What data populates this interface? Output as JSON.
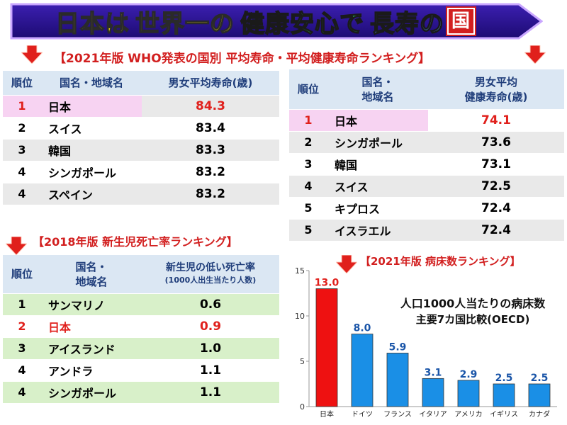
{
  "banner": {
    "part1": "日本は",
    "part2": "世界一の",
    "part3": "健康安心で",
    "part4": "長寿の",
    "part5": "国"
  },
  "life_section": {
    "heading": "【2021年版 WHO発表の国別 平均寿命・平均健康寿命ランキング】"
  },
  "life_table": {
    "headers": [
      "順位",
      "国名・地域名",
      "男女平均寿命(歳)"
    ],
    "rows": [
      {
        "rank": "1",
        "name": "日本",
        "value": "84.3"
      },
      {
        "rank": "2",
        "name": "スイス",
        "value": "83.4"
      },
      {
        "rank": "3",
        "name": "韓国",
        "value": "83.3"
      },
      {
        "rank": "4",
        "name": "シンガポール",
        "value": "83.2"
      },
      {
        "rank": "4",
        "name": "スペイン",
        "value": "83.2"
      }
    ]
  },
  "healthy_table": {
    "headers": [
      "順位",
      "国名・\n地域名",
      "男女平均\n健康寿命(歳)"
    ],
    "rows": [
      {
        "rank": "1",
        "name": "日本",
        "value": "74.1"
      },
      {
        "rank": "2",
        "name": "シンガポール",
        "value": "73.6"
      },
      {
        "rank": "3",
        "name": "韓国",
        "value": "73.1"
      },
      {
        "rank": "4",
        "name": "スイス",
        "value": "72.5"
      },
      {
        "rank": "5",
        "name": "キプロス",
        "value": "72.4"
      },
      {
        "rank": "5",
        "name": "イスラエル",
        "value": "72.4"
      }
    ]
  },
  "neonatal_section": {
    "heading": "【2018年版 新生児死亡率ランキング】"
  },
  "neonatal_table": {
    "headers": [
      "順位",
      "国名・\n地域名",
      "新生児の低い死亡率",
      "(1000人出生当たり人数)"
    ],
    "rows": [
      {
        "rank": "1",
        "name": "サンマリノ",
        "value": "0.6"
      },
      {
        "rank": "2",
        "name": "日本",
        "value": "0.9"
      },
      {
        "rank": "3",
        "name": "アイスランド",
        "value": "1.0"
      },
      {
        "rank": "4",
        "name": "アンドラ",
        "value": "1.1"
      },
      {
        "rank": "4",
        "name": "シンガポール",
        "value": "1.1"
      }
    ]
  },
  "beds_section": {
    "heading": "【2021年版 病床数ランキング】"
  },
  "chart_data": {
    "type": "bar",
    "title": "人口1000人当たりの病床数",
    "subtitle": "主要7カ国比較(OECD)",
    "categories": [
      "日本",
      "ドイツ",
      "フランス",
      "イタリア",
      "アメリカ",
      "イギリス",
      "カナダ"
    ],
    "values": [
      13.0,
      8.0,
      5.9,
      3.1,
      2.9,
      2.5,
      2.5
    ],
    "value_labels": [
      "13.0",
      "8.0",
      "5.9",
      "3.1",
      "2.9",
      "2.5",
      "2.5"
    ],
    "yticks": [
      "0",
      "5",
      "10",
      "15"
    ],
    "ylim": [
      0,
      15
    ],
    "xlabel": "",
    "ylabel": "",
    "grid": false,
    "colors": {
      "highlight": "#ee1111",
      "default": "#1a8fe6",
      "highlight_label": "#e0201c",
      "default_label": "#1a55a8"
    }
  },
  "colors": {
    "accent_red": "#d21f1f",
    "header_blue": "#dbe7f3",
    "row_gray": "#e9e9e9",
    "row_green": "#d8f0c9",
    "japan_pink": "#f7d3f2"
  }
}
